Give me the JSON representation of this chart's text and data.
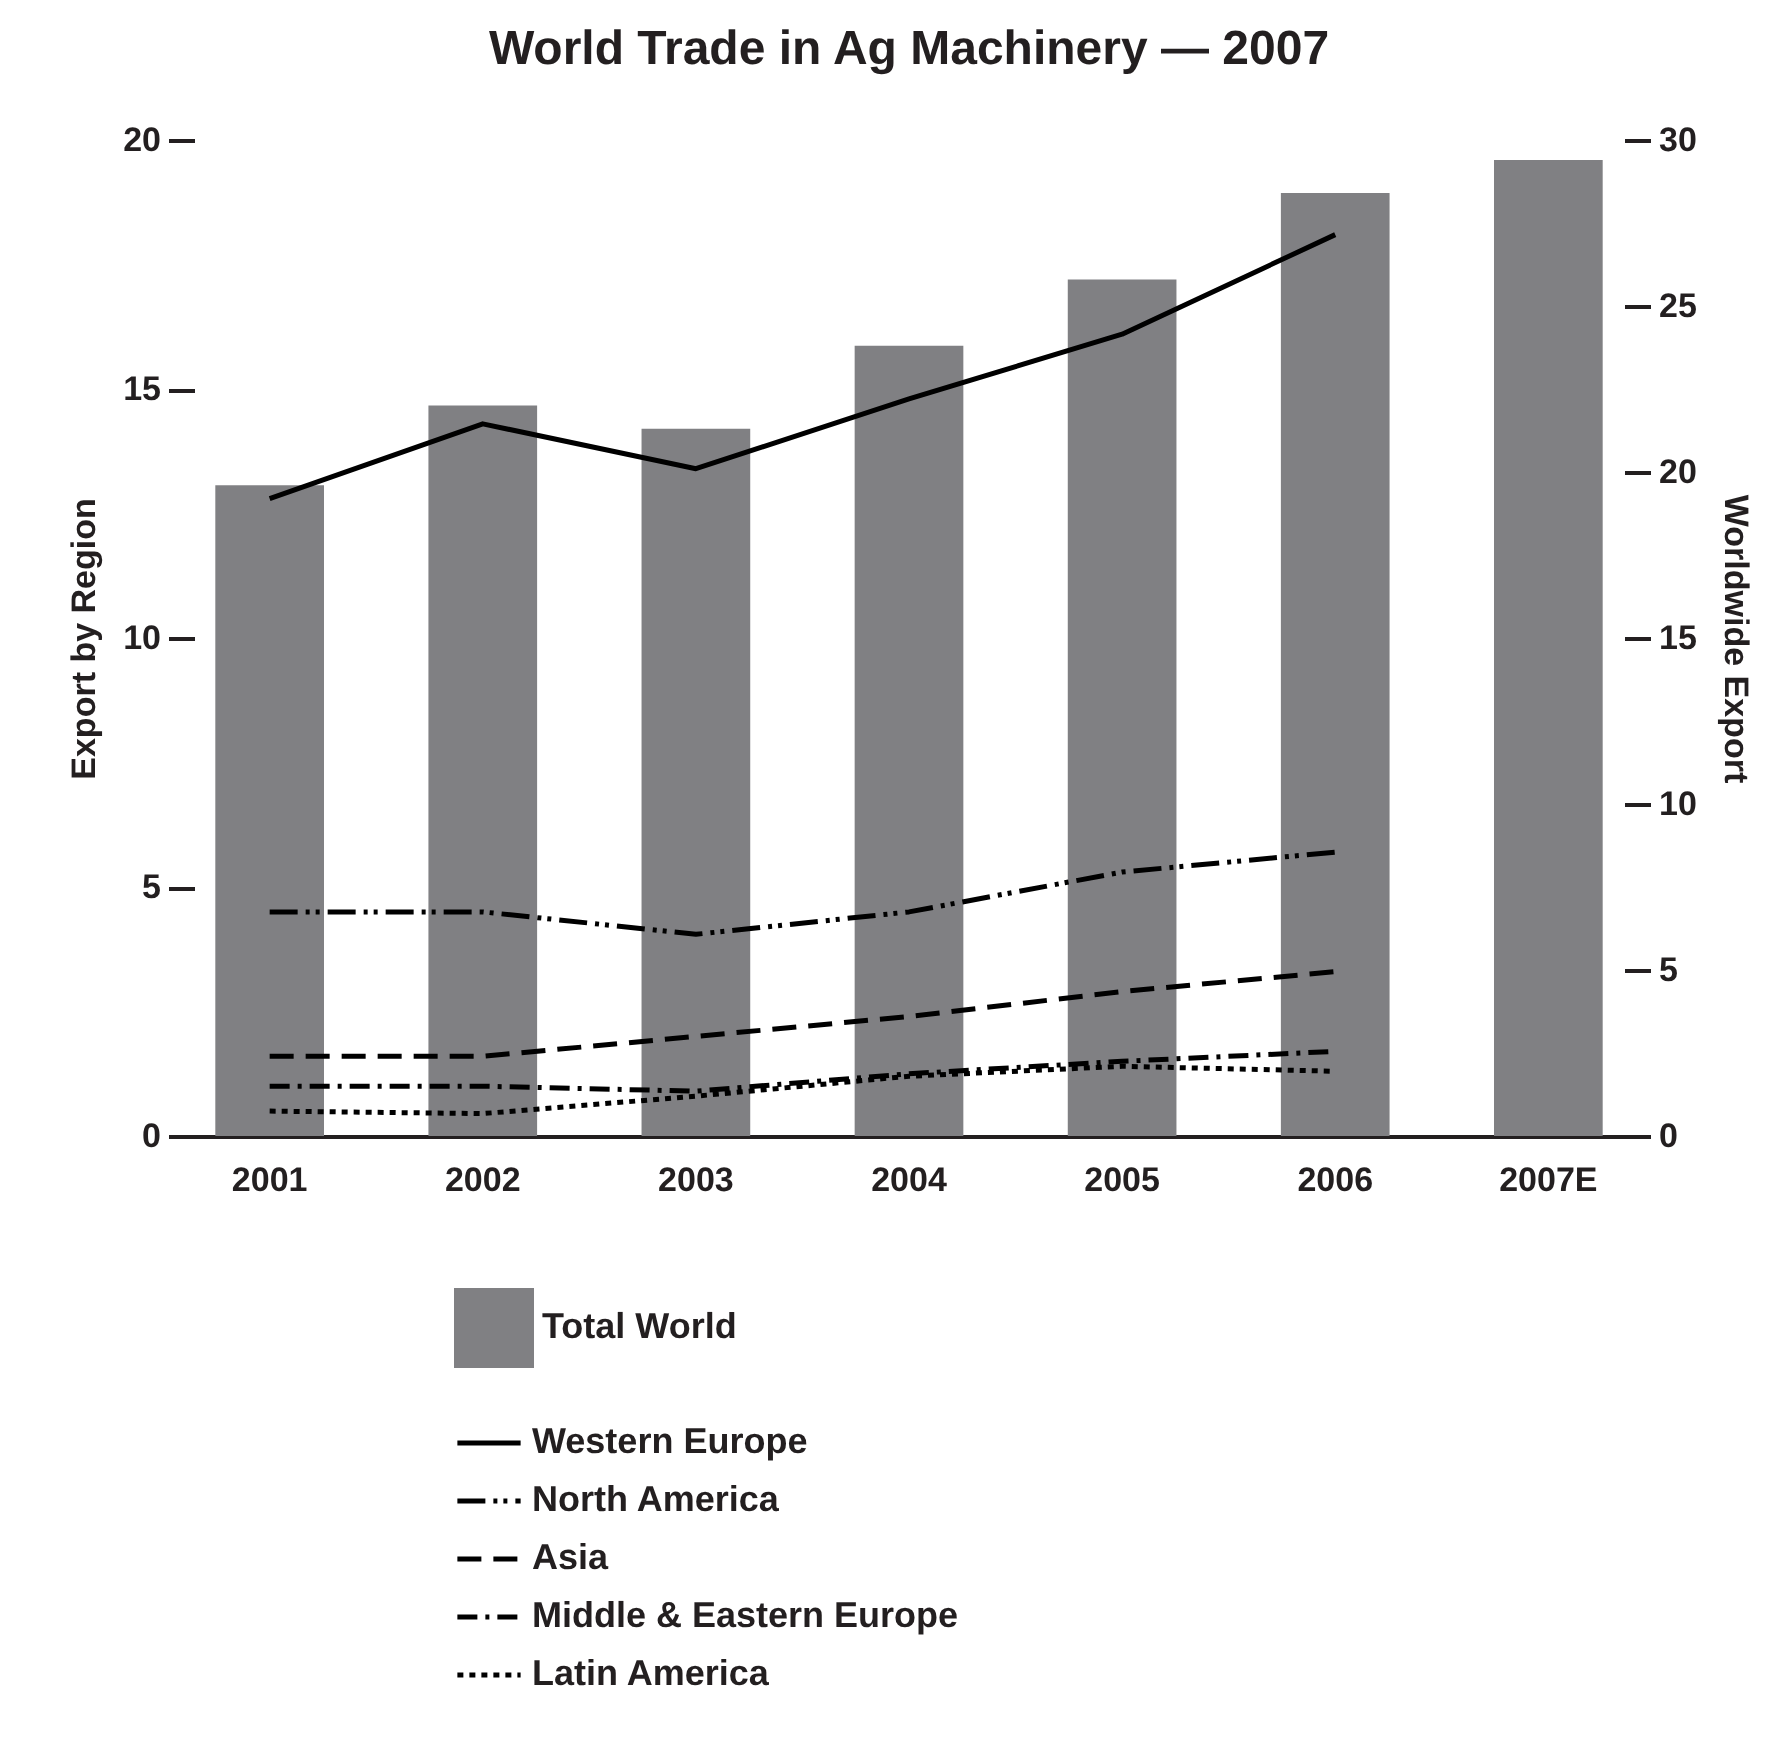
{
  "chart_data": {
    "type": "bar",
    "title": "World Trade in Ag Machinery — 2007",
    "ylabel": "Export by Region",
    "y2label": "Worldwide Export",
    "categories": [
      "2001",
      "2002",
      "2003",
      "2004",
      "2005",
      "2006",
      "2007E"
    ],
    "series": [
      {
        "name": "Total World",
        "axis": "y2",
        "color": "#808083",
        "values": [
          19.6,
          22.0,
          21.3,
          23.8,
          25.8,
          28.4,
          29.4
        ]
      },
      {
        "name": "Western Europe",
        "type": "line",
        "line_style": "solid",
        "color": "#000000",
        "values": [
          12.8,
          14.3,
          13.4,
          14.8,
          16.1,
          18.1,
          null
        ]
      },
      {
        "name": "North America",
        "type": "line",
        "line_style": "dashed",
        "color": "#000000",
        "values": [
          4.5,
          4.5,
          4.05,
          4.5,
          5.3,
          5.7,
          null
        ]
      },
      {
        "name": "Asia",
        "type": "line",
        "line_style": "dashed",
        "color": "#000000",
        "values": [
          1.6,
          1.6,
          2.0,
          2.4,
          2.9,
          3.3,
          null
        ]
      },
      {
        "name": "Middle & Eastern Europe",
        "type": "line",
        "line_style": "dashed",
        "color": "#000000",
        "values": [
          1.0,
          1.0,
          0.9,
          1.25,
          1.5,
          1.7,
          null
        ]
      },
      {
        "name": "Latin America",
        "type": "line",
        "line_style": "dotted",
        "color": "#000000",
        "values": [
          0.5,
          0.45,
          0.8,
          1.2,
          1.4,
          1.3,
          null
        ]
      }
    ],
    "ylim": [
      0,
      20
    ],
    "yticks": [
      0,
      5,
      10,
      15,
      20
    ],
    "y2lim": [
      0,
      30
    ],
    "y2ticks": [
      0,
      5,
      10,
      15,
      20,
      25,
      30
    ],
    "grid": false,
    "legend": "bottom"
  }
}
